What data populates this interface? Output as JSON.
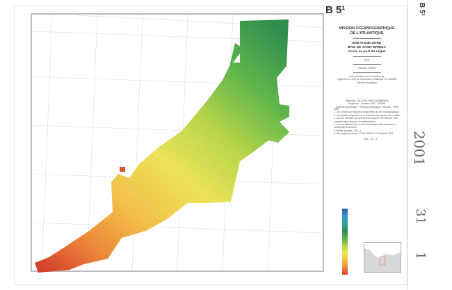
{
  "sheet_id": "B 5¹",
  "title": {
    "line1": "MISSION OCEANOGRAPHIQUE",
    "line2": "DE L'ATLANTIQUE",
    "region1": "BRETAGNE NORD",
    "region2": "BAIE DE SAINT-BRIEUC",
    "subtitle": "Accès au port du Légué",
    "year": "2000",
    "scale": "Échelle : 1/5000"
  },
  "credits": {
    "line1": "Levé effectué sous la direction de",
    "line2": "l'ingénieur en chef de l'armement Christophe LE VISAGE",
    "line3": "directeur technique"
  },
  "geodesy": {
    "ellipsoid": "Ellipsoïde : IAG GRS 1980 (CANBERRA)",
    "projection": "Projection : Lambert 1993 - RGF93",
    "system": "Système géodésique : Réseau Géodésique Français - 1993"
  },
  "notes": {
    "heading": "Note :",
    "items": [
      "1- Les sondes sont réduites et rapportées au zéro hydrographique.",
      "2- Les isobathes figurées sur ce document sont issues d'un modèle.",
      "3- La zone délimitée par un trait tireté associé à des flèches a été complètement explorée au sondeur latéral.",
      "4- La zone délimitée par un trait tireté simple a été entièrement investiguée au sondeur.",
      "5- Minute associée : NTS_1",
      "6- Voir rapport particulier n°2/14 MOA/NP du 24 janvier 2001."
    ],
    "reference": "2001 - 511 - 1"
  },
  "margin_marks": {
    "stamp_year": "2001",
    "number_a": "31",
    "number_b": "1"
  },
  "depth_colors": [
    "#2b5fa8",
    "#3b8fd0",
    "#2fa3a0",
    "#2e8f50",
    "#4fb04a",
    "#a6d048",
    "#f0e84a",
    "#f7c040",
    "#f08a3a",
    "#d8402c"
  ]
}
